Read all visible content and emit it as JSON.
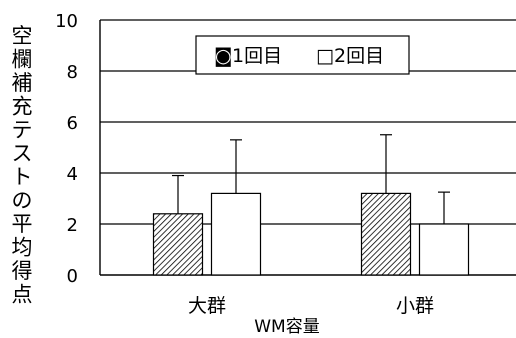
{
  "chart_data": {
    "type": "bar",
    "title": "",
    "xlabel": "WM容量",
    "ylabel": "空欄補充テストの平均得点",
    "ylim": [
      0,
      10
    ],
    "yticks": [
      0,
      2,
      4,
      6,
      8,
      10
    ],
    "grid": true,
    "legend_position": "top-center",
    "categories": [
      "大群",
      "小群"
    ],
    "series": [
      {
        "name": "1回目",
        "values": [
          2.4,
          3.2
        ],
        "error": [
          1.5,
          2.3
        ],
        "pattern": "diagonal-hatch",
        "legend_marker": "◙"
      },
      {
        "name": "2回目",
        "values": [
          3.2,
          2.0
        ],
        "error": [
          2.1,
          1.25
        ],
        "pattern": "white",
        "legend_marker": "□"
      }
    ]
  },
  "colors": {
    "axis": "#000000",
    "bar_fill": "#ffffff",
    "hatch": "#000000"
  }
}
